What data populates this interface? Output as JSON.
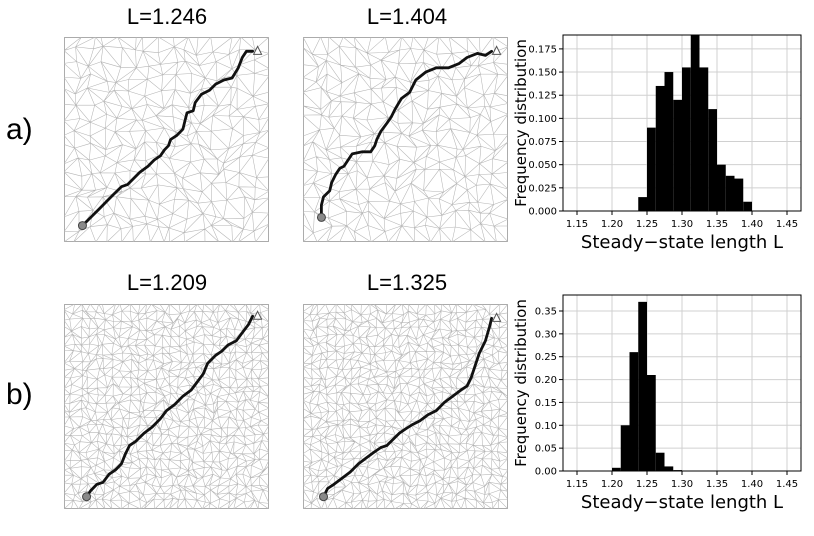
{
  "row_labels": [
    "a)",
    "b)"
  ],
  "panels": [
    {
      "title": "L=1.246",
      "mesh_density": 15,
      "path": [
        [
          0.09,
          0.08
        ],
        [
          0.13,
          0.12
        ],
        [
          0.17,
          0.16
        ],
        [
          0.21,
          0.2
        ],
        [
          0.24,
          0.23
        ],
        [
          0.28,
          0.27
        ],
        [
          0.31,
          0.28
        ],
        [
          0.34,
          0.31
        ],
        [
          0.37,
          0.34
        ],
        [
          0.41,
          0.37
        ],
        [
          0.44,
          0.4
        ],
        [
          0.47,
          0.42
        ],
        [
          0.49,
          0.45
        ],
        [
          0.51,
          0.47
        ],
        [
          0.52,
          0.5
        ],
        [
          0.55,
          0.52
        ],
        [
          0.58,
          0.55
        ],
        [
          0.59,
          0.59
        ],
        [
          0.6,
          0.63
        ],
        [
          0.63,
          0.64
        ],
        [
          0.64,
          0.68
        ],
        [
          0.67,
          0.72
        ],
        [
          0.71,
          0.74
        ],
        [
          0.74,
          0.77
        ],
        [
          0.78,
          0.79
        ],
        [
          0.82,
          0.8
        ],
        [
          0.85,
          0.85
        ],
        [
          0.87,
          0.9
        ],
        [
          0.89,
          0.93
        ],
        [
          0.92,
          0.93
        ]
      ]
    },
    {
      "title": "L=1.404",
      "mesh_density": 15,
      "path": [
        [
          0.09,
          0.12
        ],
        [
          0.09,
          0.18
        ],
        [
          0.1,
          0.22
        ],
        [
          0.13,
          0.25
        ],
        [
          0.14,
          0.29
        ],
        [
          0.16,
          0.33
        ],
        [
          0.18,
          0.36
        ],
        [
          0.2,
          0.37
        ],
        [
          0.22,
          0.4
        ],
        [
          0.24,
          0.43
        ],
        [
          0.29,
          0.44
        ],
        [
          0.33,
          0.44
        ],
        [
          0.35,
          0.47
        ],
        [
          0.36,
          0.5
        ],
        [
          0.38,
          0.54
        ],
        [
          0.41,
          0.58
        ],
        [
          0.43,
          0.61
        ],
        [
          0.45,
          0.65
        ],
        [
          0.48,
          0.7
        ],
        [
          0.52,
          0.73
        ],
        [
          0.55,
          0.79
        ],
        [
          0.6,
          0.83
        ],
        [
          0.65,
          0.85
        ],
        [
          0.71,
          0.85
        ],
        [
          0.76,
          0.87
        ],
        [
          0.8,
          0.9
        ],
        [
          0.85,
          0.92
        ],
        [
          0.89,
          0.91
        ],
        [
          0.92,
          0.93
        ]
      ]
    },
    {
      "title": "L=1.209",
      "mesh_density": 25,
      "path": [
        [
          0.11,
          0.06
        ],
        [
          0.13,
          0.09
        ],
        [
          0.16,
          0.12
        ],
        [
          0.19,
          0.13
        ],
        [
          0.22,
          0.17
        ],
        [
          0.25,
          0.19
        ],
        [
          0.28,
          0.22
        ],
        [
          0.3,
          0.27
        ],
        [
          0.32,
          0.31
        ],
        [
          0.35,
          0.33
        ],
        [
          0.39,
          0.37
        ],
        [
          0.43,
          0.4
        ],
        [
          0.47,
          0.44
        ],
        [
          0.5,
          0.48
        ],
        [
          0.54,
          0.51
        ],
        [
          0.58,
          0.55
        ],
        [
          0.62,
          0.58
        ],
        [
          0.65,
          0.62
        ],
        [
          0.68,
          0.66
        ],
        [
          0.7,
          0.71
        ],
        [
          0.74,
          0.75
        ],
        [
          0.77,
          0.77
        ],
        [
          0.8,
          0.8
        ],
        [
          0.84,
          0.82
        ],
        [
          0.87,
          0.86
        ],
        [
          0.9,
          0.9
        ],
        [
          0.92,
          0.94
        ]
      ]
    },
    {
      "title": "L=1.325",
      "mesh_density": 25,
      "path": [
        [
          0.1,
          0.06
        ],
        [
          0.12,
          0.1
        ],
        [
          0.15,
          0.12
        ],
        [
          0.19,
          0.15
        ],
        [
          0.23,
          0.18
        ],
        [
          0.27,
          0.22
        ],
        [
          0.31,
          0.25
        ],
        [
          0.35,
          0.28
        ],
        [
          0.38,
          0.3
        ],
        [
          0.41,
          0.31
        ],
        [
          0.44,
          0.34
        ],
        [
          0.47,
          0.37
        ],
        [
          0.5,
          0.39
        ],
        [
          0.53,
          0.41
        ],
        [
          0.57,
          0.43
        ],
        [
          0.61,
          0.46
        ],
        [
          0.65,
          0.48
        ],
        [
          0.69,
          0.52
        ],
        [
          0.73,
          0.55
        ],
        [
          0.77,
          0.58
        ],
        [
          0.8,
          0.6
        ],
        [
          0.82,
          0.64
        ],
        [
          0.84,
          0.7
        ],
        [
          0.86,
          0.76
        ],
        [
          0.89,
          0.82
        ],
        [
          0.91,
          0.89
        ],
        [
          0.92,
          0.93
        ]
      ]
    }
  ],
  "chart_data": [
    {
      "type": "bar",
      "ylabel": "Frequency distribution",
      "xlabel": "Steady−state length L",
      "xlim": [
        1.13,
        1.47
      ],
      "ylim": [
        0,
        0.19
      ],
      "xticks": [
        "1.15",
        "1.20",
        "1.25",
        "1.30",
        "1.35",
        "1.40",
        "1.45"
      ],
      "yticks": [
        "0.000",
        "0.025",
        "0.050",
        "0.075",
        "0.100",
        "0.125",
        "0.150",
        "0.175"
      ],
      "grid": true,
      "bin_width": 0.0125,
      "bin_start": [
        1.2375,
        1.25,
        1.2625,
        1.275,
        1.2875,
        1.3,
        1.3125,
        1.325,
        1.3375,
        1.35,
        1.3625,
        1.375,
        1.3875
      ],
      "values": [
        0.015,
        0.09,
        0.135,
        0.15,
        0.12,
        0.155,
        0.19,
        0.155,
        0.11,
        0.05,
        0.038,
        0.035,
        0.01
      ]
    },
    {
      "type": "bar",
      "ylabel": "Frequency distribution",
      "xlabel": "Steady−state length L",
      "xlim": [
        1.13,
        1.47
      ],
      "ylim": [
        0,
        0.385
      ],
      "xticks": [
        "1.15",
        "1.20",
        "1.25",
        "1.30",
        "1.35",
        "1.40",
        "1.45"
      ],
      "yticks": [
        "0.00",
        "0.05",
        "0.10",
        "0.15",
        "0.20",
        "0.25",
        "0.30",
        "0.35"
      ],
      "grid": true,
      "bin_width": 0.0125,
      "bin_start": [
        1.2,
        1.2125,
        1.225,
        1.2375,
        1.25,
        1.2625,
        1.275,
        1.2875
      ],
      "values": [
        0.007,
        0.1,
        0.26,
        0.37,
        0.21,
        0.04,
        0.01,
        0.002
      ]
    }
  ]
}
